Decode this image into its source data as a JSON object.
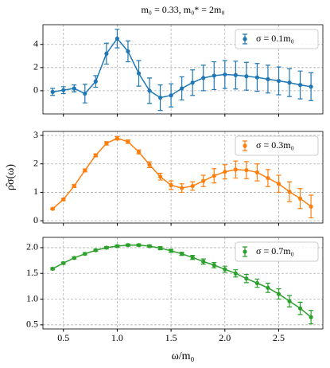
{
  "chart_data": [
    {
      "type": "line",
      "title": "m₀ = 0.33,  m₀* = 2m₀",
      "x": [
        0.4,
        0.5,
        0.6,
        0.7,
        0.8,
        0.9,
        1.0,
        1.1,
        1.2,
        1.3,
        1.4,
        1.5,
        1.6,
        1.7,
        1.8,
        1.9,
        2.0,
        2.1,
        2.2,
        2.3,
        2.4,
        2.5,
        2.6,
        2.7,
        2.8
      ],
      "series": [
        {
          "name": "σ = 0.1m₀",
          "color": "#1f77b4",
          "values": [
            -0.1,
            0.05,
            0.2,
            -0.25,
            0.8,
            3.2,
            4.5,
            3.4,
            1.5,
            0.0,
            -0.6,
            -0.4,
            0.2,
            0.7,
            1.1,
            1.3,
            1.4,
            1.35,
            1.25,
            1.15,
            1.0,
            0.85,
            0.7,
            0.5,
            0.35
          ],
          "errors": [
            0.3,
            0.3,
            0.3,
            0.8,
            0.5,
            0.9,
            0.8,
            0.9,
            1.1,
            1.1,
            1.1,
            1.0,
            1.0,
            1.1,
            1.1,
            1.2,
            1.2,
            1.2,
            1.2,
            1.2,
            1.2,
            1.2,
            1.2,
            1.2,
            1.2
          ]
        }
      ],
      "ylim": [
        -2.0,
        5.7
      ],
      "yticks": [
        0,
        2,
        4
      ],
      "grid": true,
      "legend": "upper right"
    },
    {
      "type": "line",
      "ylabel": "ρ̂σ(ω)",
      "x": [
        0.4,
        0.5,
        0.6,
        0.7,
        0.8,
        0.9,
        1.0,
        1.1,
        1.2,
        1.3,
        1.4,
        1.5,
        1.6,
        1.7,
        1.8,
        1.9,
        2.0,
        2.1,
        2.2,
        2.3,
        2.4,
        2.5,
        2.6,
        2.7,
        2.8
      ],
      "series": [
        {
          "name": "σ = 0.3m₀",
          "color": "#ff7f0e",
          "values": [
            0.42,
            0.75,
            1.22,
            1.77,
            2.3,
            2.72,
            2.9,
            2.78,
            2.42,
            1.97,
            1.55,
            1.25,
            1.15,
            1.22,
            1.4,
            1.58,
            1.72,
            1.8,
            1.78,
            1.7,
            1.5,
            1.3,
            1.02,
            0.78,
            0.5
          ],
          "errors": [
            0.03,
            0.04,
            0.05,
            0.05,
            0.05,
            0.06,
            0.06,
            0.06,
            0.07,
            0.1,
            0.12,
            0.15,
            0.15,
            0.15,
            0.2,
            0.25,
            0.25,
            0.3,
            0.3,
            0.3,
            0.3,
            0.3,
            0.35,
            0.35,
            0.4
          ]
        }
      ],
      "ylim": [
        -0.08,
        3.14
      ],
      "yticks": [
        0,
        1,
        2,
        3
      ],
      "grid": true,
      "legend": "upper right"
    },
    {
      "type": "line",
      "xlabel": "ω/m₀",
      "x": [
        0.4,
        0.5,
        0.6,
        0.7,
        0.8,
        0.9,
        1.0,
        1.1,
        1.2,
        1.3,
        1.4,
        1.5,
        1.6,
        1.7,
        1.8,
        1.9,
        2.0,
        2.1,
        2.2,
        2.3,
        2.4,
        2.5,
        2.6,
        2.7,
        2.8
      ],
      "series": [
        {
          "name": "σ = 0.7m₀",
          "color": "#2ca02c",
          "values": [
            1.59,
            1.7,
            1.8,
            1.88,
            1.95,
            2.0,
            2.03,
            2.05,
            2.05,
            2.03,
            1.99,
            1.94,
            1.88,
            1.81,
            1.73,
            1.66,
            1.58,
            1.5,
            1.4,
            1.31,
            1.22,
            1.1,
            0.96,
            0.82,
            0.65
          ],
          "errors": [
            0.02,
            0.02,
            0.02,
            0.02,
            0.02,
            0.02,
            0.02,
            0.02,
            0.02,
            0.02,
            0.03,
            0.03,
            0.03,
            0.04,
            0.05,
            0.05,
            0.06,
            0.07,
            0.08,
            0.08,
            0.09,
            0.1,
            0.11,
            0.12,
            0.13
          ]
        }
      ],
      "ylim": [
        0.42,
        2.2
      ],
      "yticks": [
        {
          "value": 0.5,
          "label": "0.5"
        },
        {
          "value": 1.0,
          "label": "1.0"
        },
        {
          "value": 1.5,
          "label": "1.5"
        },
        {
          "value": 2.0,
          "label": "2.0"
        }
      ],
      "xlim": [
        0.31,
        2.91
      ],
      "xticks": [
        {
          "value": 0.5,
          "label": "0.5"
        },
        {
          "value": 1.0,
          "label": "1.0"
        },
        {
          "value": 1.5,
          "label": "1.5"
        },
        {
          "value": 2.0,
          "label": "2.0"
        },
        {
          "value": 2.5,
          "label": "2.5"
        }
      ],
      "grid": true,
      "legend": "upper right"
    }
  ]
}
